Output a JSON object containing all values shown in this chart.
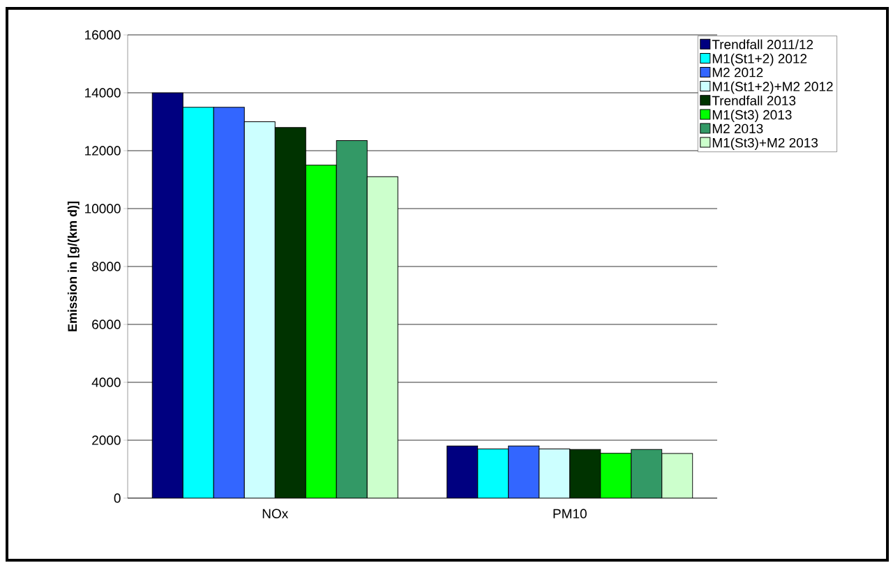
{
  "chart_data": {
    "type": "bar",
    "ylabel": "Emission in [g/(km d)]",
    "categories": [
      "NOx",
      "PM10"
    ],
    "series": [
      {
        "name": "Trendfall 2011/12",
        "color": "#000080",
        "values": [
          14000,
          1800
        ]
      },
      {
        "name": "M1(St1+2) 2012",
        "color": "#00ffff",
        "values": [
          13500,
          1700
        ]
      },
      {
        "name": "M2 2012",
        "color": "#3366ff",
        "values": [
          13500,
          1800
        ]
      },
      {
        "name": "M1(St1+2)+M2 2012",
        "color": "#ccffff",
        "values": [
          13000,
          1700
        ]
      },
      {
        "name": "Trendfall 2013",
        "color": "#003300",
        "values": [
          12800,
          1680
        ]
      },
      {
        "name": "M1(St3) 2013",
        "color": "#00ff00",
        "values": [
          11500,
          1550
        ]
      },
      {
        "name": "M2 2013",
        "color": "#339966",
        "values": [
          12350,
          1680
        ]
      },
      {
        "name": "M1(St3)+M2 2013",
        "color": "#ccffcc",
        "values": [
          11100,
          1540
        ]
      }
    ],
    "ylim": [
      0,
      16000
    ],
    "yticks": [
      0,
      2000,
      4000,
      6000,
      8000,
      10000,
      12000,
      14000,
      16000
    ],
    "grid": "y",
    "legend": "top right"
  }
}
